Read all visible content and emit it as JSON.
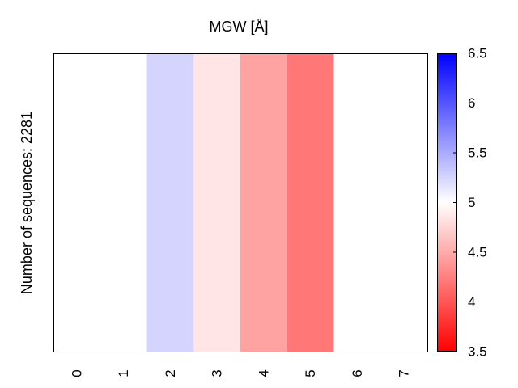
{
  "chart_data": {
    "type": "heatmap",
    "title": "MGW [Å]",
    "ylabel": "Number of sequences: 2281",
    "xlabel": "",
    "x_categories": [
      "0",
      "1",
      "2",
      "3",
      "4",
      "5",
      "6",
      "7"
    ],
    "values": [
      5.0,
      5.0,
      5.25,
      4.85,
      4.45,
      4.2,
      5.0,
      5.0
    ],
    "colorbar": {
      "min": 3.5,
      "max": 6.5,
      "ticks": [
        "3.5",
        "4",
        "4.5",
        "5",
        "5.5",
        "6",
        "6.5"
      ],
      "colormap": "bwr",
      "low_color": "#ff0000",
      "mid_color": "#ffffff",
      "high_color": "#0000ff"
    }
  }
}
